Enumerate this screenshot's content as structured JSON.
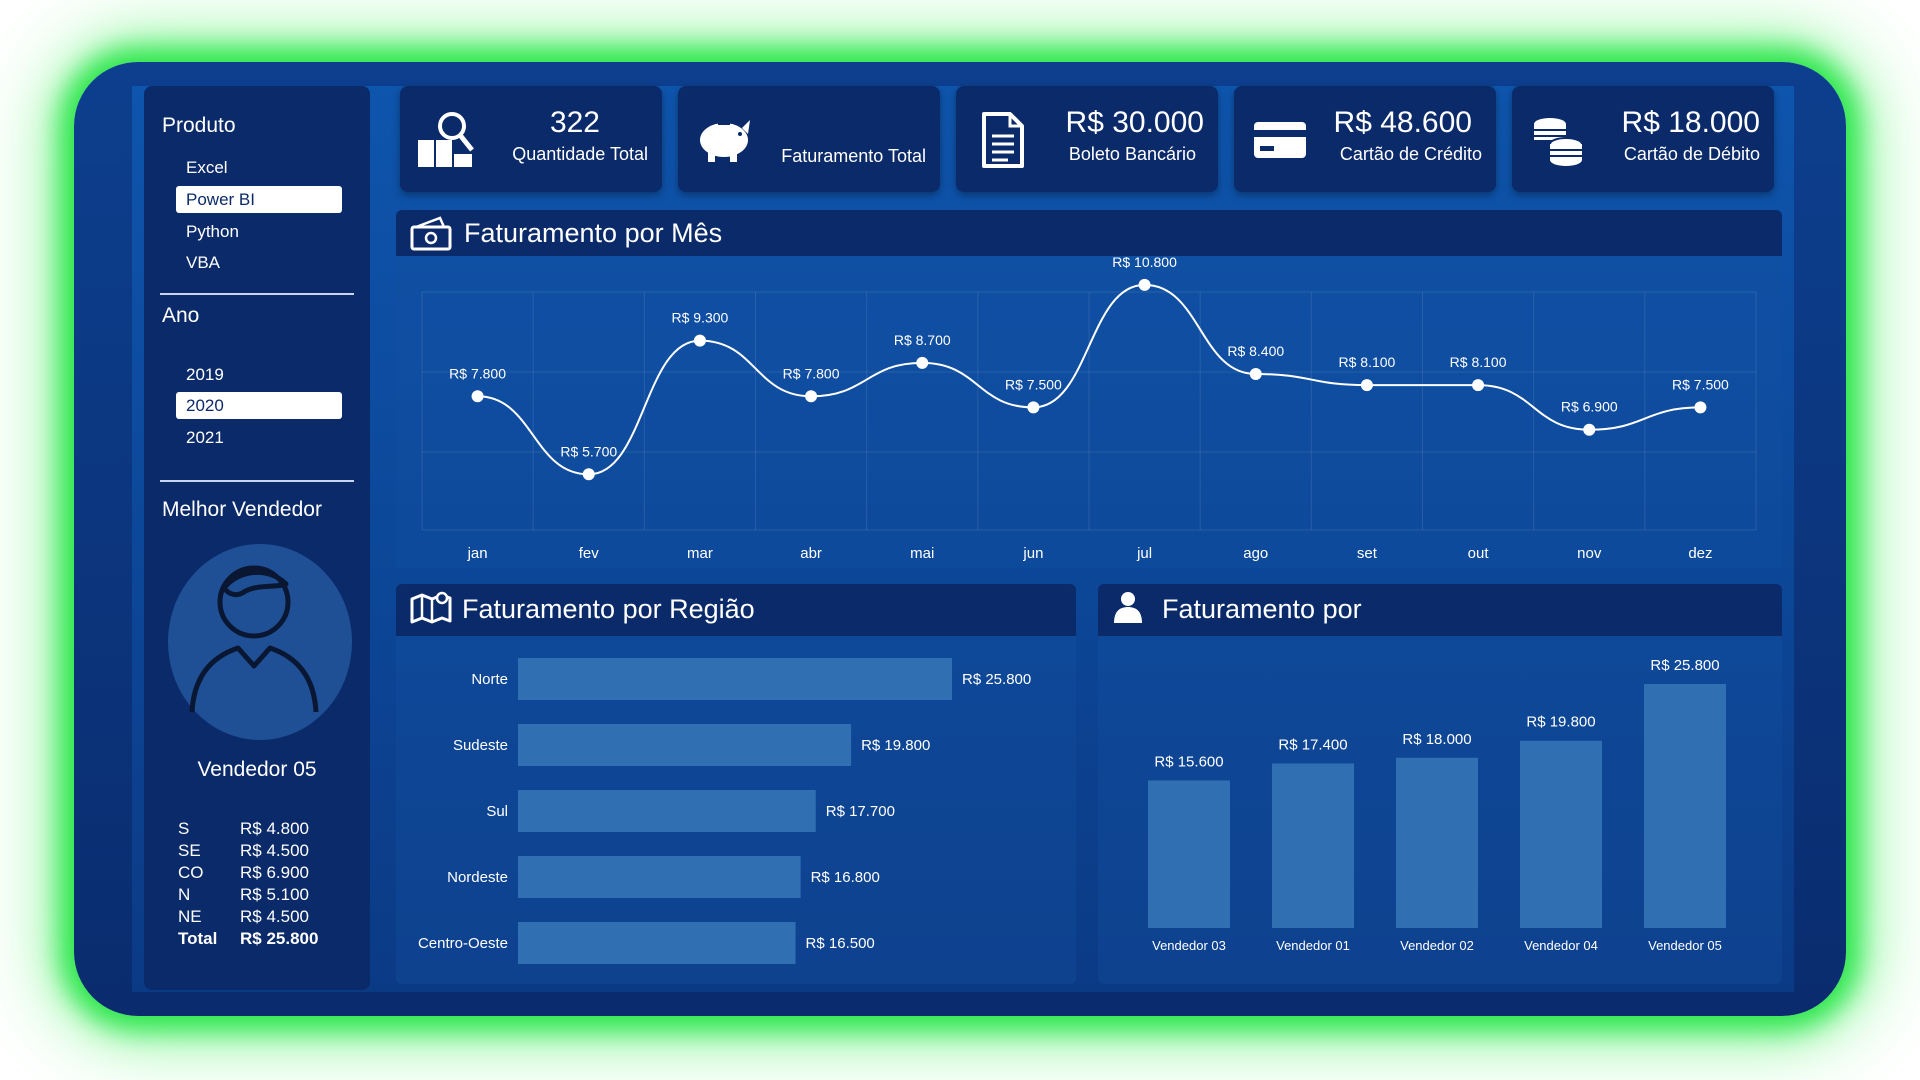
{
  "sidebar": {
    "product_title": "Produto",
    "products": [
      "Excel",
      "Power BI",
      "Python",
      "VBA"
    ],
    "product_selected": "Power BI",
    "year_title": "Ano",
    "years": [
      "2019",
      "2020",
      "2021"
    ],
    "year_selected": "2020",
    "best_seller_title": "Melhor Vendedor",
    "best_seller_name": "Vendedor 05",
    "regions": [
      {
        "code": "S",
        "value": "R$ 4.800"
      },
      {
        "code": "SE",
        "value": "R$ 4.500"
      },
      {
        "code": "CO",
        "value": "R$ 6.900"
      },
      {
        "code": "N",
        "value": "R$ 5.100"
      },
      {
        "code": "NE",
        "value": "R$ 4.500"
      }
    ],
    "total_label": "Total",
    "total_value": "R$ 25.800"
  },
  "kpis": [
    {
      "icon": "boxes-search-icon",
      "value": "322",
      "label": "Quantidade Total"
    },
    {
      "icon": "piggy-bank-icon",
      "value": "",
      "label": "Faturamento Total"
    },
    {
      "icon": "document-icon",
      "value": "R$ 30.000",
      "label": "Boleto Bancário"
    },
    {
      "icon": "credit-card-icon",
      "value": "R$ 48.600",
      "label": "Cartão de Crédito"
    },
    {
      "icon": "coins-icon",
      "value": "R$ 18.000",
      "label": "Cartão de Débito"
    }
  ],
  "panels": {
    "monthly_title": "Faturamento por Mês",
    "region_title": "Faturamento por Região",
    "seller_title": "Faturamento por"
  },
  "colors": {
    "accent_green": "#2ce64c",
    "panel_dark": "#0b2a69",
    "bar_fill": "#2f6fb2"
  },
  "chart_data": [
    {
      "type": "line",
      "title": "Faturamento por Mês",
      "categories": [
        "jan",
        "fev",
        "mar",
        "abr",
        "mai",
        "jun",
        "jul",
        "ago",
        "set",
        "out",
        "nov",
        "dez"
      ],
      "values": [
        7800,
        5700,
        9300,
        7800,
        8700,
        7500,
        10800,
        8400,
        8100,
        8100,
        6900,
        7500
      ],
      "labels": [
        "R$ 7.800",
        "R$ 5.700",
        "R$ 9.300",
        "R$ 7.800",
        "R$ 8.700",
        "R$ 7.500",
        "R$ 10.800",
        "R$ 8.400",
        "R$ 8.100",
        "R$ 8.100",
        "R$ 6.900",
        "R$ 7.500"
      ],
      "grid": true
    },
    {
      "type": "bar",
      "orientation": "horizontal",
      "title": "Faturamento por Região",
      "categories": [
        "Norte",
        "Sudeste",
        "Sul",
        "Nordeste",
        "Centro-Oeste"
      ],
      "values": [
        25800,
        19800,
        17700,
        16800,
        16500
      ],
      "labels": [
        "R$ 25.800",
        "R$ 19.800",
        "R$ 17.700",
        "R$ 16.800",
        "R$ 16.500"
      ]
    },
    {
      "type": "bar",
      "orientation": "vertical",
      "title": "Faturamento por",
      "categories": [
        "Vendedor 03",
        "Vendedor 01",
        "Vendedor 02",
        "Vendedor 04",
        "Vendedor 05"
      ],
      "values": [
        15600,
        17400,
        18000,
        19800,
        25800
      ],
      "labels": [
        "R$ 15.600",
        "R$ 17.400",
        "R$ 18.000",
        "R$ 19.800",
        "R$ 25.800"
      ]
    }
  ]
}
